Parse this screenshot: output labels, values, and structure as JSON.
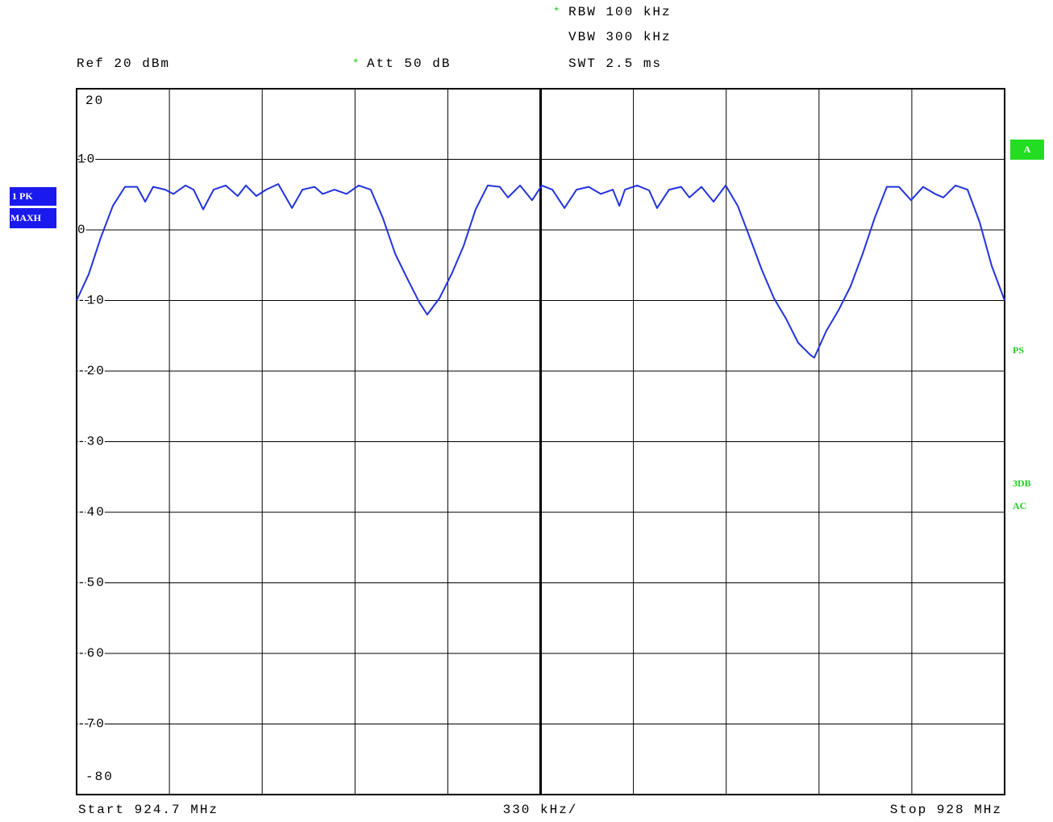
{
  "chart_data": {
    "type": "line",
    "rbw_flag": "*",
    "rbw": "RBW 100 kHz",
    "vbw": "VBW 300 kHz",
    "swt": "SWT 2.5 ms",
    "ref": "Ref 20 dBm",
    "att_flag": "*",
    "att": "Att 50 dB",
    "trace_label": "1 PK",
    "detector_label": "MAXH",
    "screen_label": "A",
    "side_labels": [
      "PS",
      "3DB",
      "AC"
    ],
    "start": "Start 924.7 MHz",
    "span_per_div": "330 kHz/",
    "stop": "Stop 928 MHz",
    "xlim": [
      924.7,
      928
    ],
    "ylim": [
      -80,
      20
    ],
    "yticks": [
      20,
      10,
      0,
      -10,
      -20,
      -30,
      -40,
      -50,
      -60,
      -70,
      -80
    ],
    "grid": true,
    "series": [
      {
        "color": "#2233dd",
        "x": [
          924.7,
          924.743,
          924.786,
          924.829,
          924.872,
          924.915,
          924.944,
          924.972,
          925.015,
          925.044,
          925.087,
          925.116,
          925.15,
          925.187,
          925.23,
          925.273,
          925.302,
          925.339,
          925.374,
          925.417,
          925.466,
          925.503,
          925.546,
          925.575,
          925.617,
          925.66,
          925.703,
          925.746,
          925.789,
          925.833,
          925.876,
          925.919,
          925.947,
          925.99,
          926.033,
          926.076,
          926.119,
          926.162,
          926.205,
          926.234,
          926.277,
          926.32,
          926.354,
          926.392,
          926.435,
          926.478,
          926.521,
          926.564,
          926.607,
          926.63,
          926.65,
          926.693,
          926.736,
          926.764,
          926.807,
          926.85,
          926.879,
          926.922,
          926.965,
          927.008,
          927.051,
          927.094,
          927.137,
          927.18,
          927.223,
          927.266,
          927.309,
          927.323,
          927.366,
          927.409,
          927.452,
          927.495,
          927.538,
          927.581,
          927.624,
          927.667,
          927.71,
          927.753,
          927.782,
          927.825,
          927.868,
          927.911,
          927.954,
          928.0
        ],
        "values": [
          -10,
          -6.3,
          -1.1,
          3.4,
          6.1,
          6.1,
          4.0,
          6.1,
          5.7,
          5.1,
          6.3,
          5.7,
          2.9,
          5.7,
          6.3,
          4.8,
          6.3,
          4.8,
          5.7,
          6.5,
          3.1,
          5.7,
          6.1,
          5.1,
          5.7,
          5.1,
          6.3,
          5.7,
          1.7,
          -3.4,
          -6.9,
          -10.3,
          -12.0,
          -9.7,
          -6.3,
          -2.3,
          2.9,
          6.3,
          6.1,
          4.6,
          6.3,
          4.2,
          6.3,
          5.7,
          3.1,
          5.7,
          6.1,
          5.1,
          5.7,
          3.4,
          5.7,
          6.3,
          5.6,
          3.1,
          5.7,
          6.1,
          4.6,
          6.1,
          4.0,
          6.3,
          3.4,
          -1.1,
          -5.7,
          -9.7,
          -12.6,
          -16.0,
          -17.7,
          -18.1,
          -14.3,
          -11.4,
          -8.0,
          -3.4,
          1.7,
          6.1,
          6.1,
          4.2,
          6.1,
          5.1,
          4.6,
          6.3,
          5.7,
          1.1,
          -5.1,
          -10
        ]
      }
    ]
  }
}
